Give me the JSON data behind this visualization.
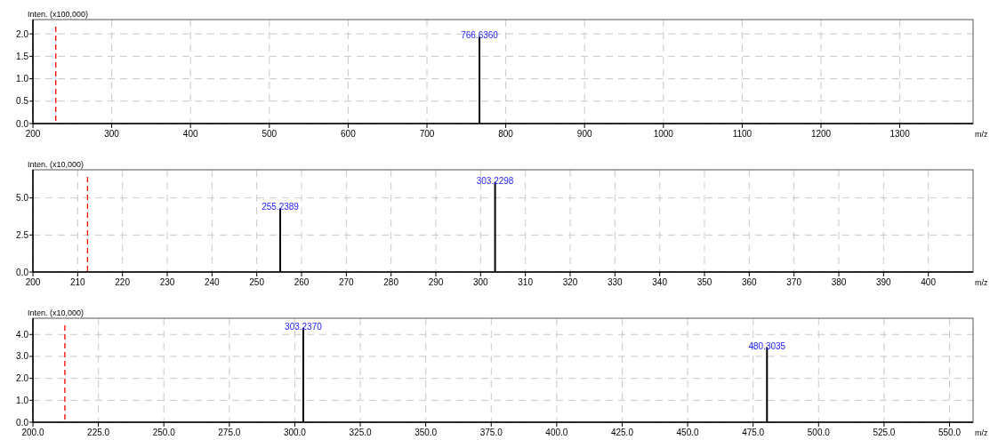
{
  "chart_data": [
    {
      "type": "bar",
      "ylabel": "Inten. (x100,000)",
      "xlabel": "m/z",
      "xlim": [
        200,
        1393
      ],
      "xticks": [
        200,
        300,
        400,
        500,
        600,
        700,
        800,
        900,
        1000,
        1100,
        1200,
        1300
      ],
      "ylim": [
        0,
        2.32
      ],
      "yticks": [
        {
          "value": 0,
          "label": "0.0"
        },
        {
          "value": 0.5,
          "label": "0.5"
        },
        {
          "value": 1,
          "label": "1.0"
        },
        {
          "value": 1.5,
          "label": "1.5"
        },
        {
          "value": 2,
          "label": "2.0"
        }
      ],
      "grid": true,
      "series": [
        {
          "color": "#000000",
          "x": [
            766.636
          ],
          "values": [
            1.94
          ]
        }
      ],
      "ref_lines": [
        {
          "axis": "x",
          "value": 229,
          "color": "#ff0000",
          "line_style": "dashed"
        }
      ],
      "annotations": [
        {
          "text": "766.6360",
          "x": 766.636,
          "y": 1.94
        }
      ]
    },
    {
      "type": "bar",
      "ylabel": "Inten. (x10,000)",
      "xlabel": "m/z",
      "xlim": [
        200,
        410
      ],
      "xticks": [
        200,
        210,
        220,
        230,
        240,
        250,
        260,
        270,
        280,
        290,
        300,
        310,
        320,
        330,
        340,
        350,
        360,
        370,
        380,
        390,
        400
      ],
      "ylim": [
        0,
        6.9
      ],
      "yticks": [
        {
          "value": 0,
          "label": "0.0"
        },
        {
          "value": 2.5,
          "label": "2.5"
        },
        {
          "value": 5,
          "label": "5.0"
        }
      ],
      "grid": true,
      "series": [
        {
          "color": "#000000",
          "x": [
            255.2389,
            303.2298
          ],
          "values": [
            4.3,
            6.08
          ]
        }
      ],
      "ref_lines": [
        {
          "axis": "x",
          "value": 212.2,
          "color": "#ff0000",
          "line_style": "dashed"
        }
      ],
      "annotations": [
        {
          "text": "255.2389",
          "x": 255.2389,
          "y": 4.3
        },
        {
          "text": "303.2298",
          "x": 303.2298,
          "y": 6.08
        }
      ]
    },
    {
      "type": "bar",
      "ylabel": "Inten. (x10,000)",
      "xlabel": "m/z",
      "xlim": [
        200,
        559
      ],
      "xticks": [
        {
          "value": 200,
          "label": "200.0"
        },
        {
          "value": 225,
          "label": "225.0"
        },
        {
          "value": 250,
          "label": "250.0"
        },
        {
          "value": 275,
          "label": "275.0"
        },
        {
          "value": 300,
          "label": "300.0"
        },
        {
          "value": 325,
          "label": "325.0"
        },
        {
          "value": 350,
          "label": "350.0"
        },
        {
          "value": 375,
          "label": "375.0"
        },
        {
          "value": 400,
          "label": "400.0"
        },
        {
          "value": 425,
          "label": "425.0"
        },
        {
          "value": 450,
          "label": "450.0"
        },
        {
          "value": 475,
          "label": "475.0"
        },
        {
          "value": 500,
          "label": "500.0"
        },
        {
          "value": 525,
          "label": "525.0"
        },
        {
          "value": 550,
          "label": "550.0"
        }
      ],
      "ylim": [
        0,
        4.74
      ],
      "yticks": [
        {
          "value": 0,
          "label": "0.0"
        },
        {
          "value": 1,
          "label": "1.0"
        },
        {
          "value": 2,
          "label": "2.0"
        },
        {
          "value": 3,
          "label": "3.0"
        },
        {
          "value": 4,
          "label": "4.0"
        }
      ],
      "grid": true,
      "series": [
        {
          "color": "#000000",
          "x": [
            303.237,
            480.3035
          ],
          "values": [
            4.3,
            3.42
          ]
        }
      ],
      "ref_lines": [
        {
          "axis": "x",
          "value": 212.2,
          "color": "#ff0000",
          "line_style": "dashed"
        }
      ],
      "annotations": [
        {
          "text": "303.2370",
          "x": 303.237,
          "y": 4.3
        },
        {
          "text": "480.3035",
          "x": 480.3035,
          "y": 3.42
        }
      ]
    }
  ]
}
